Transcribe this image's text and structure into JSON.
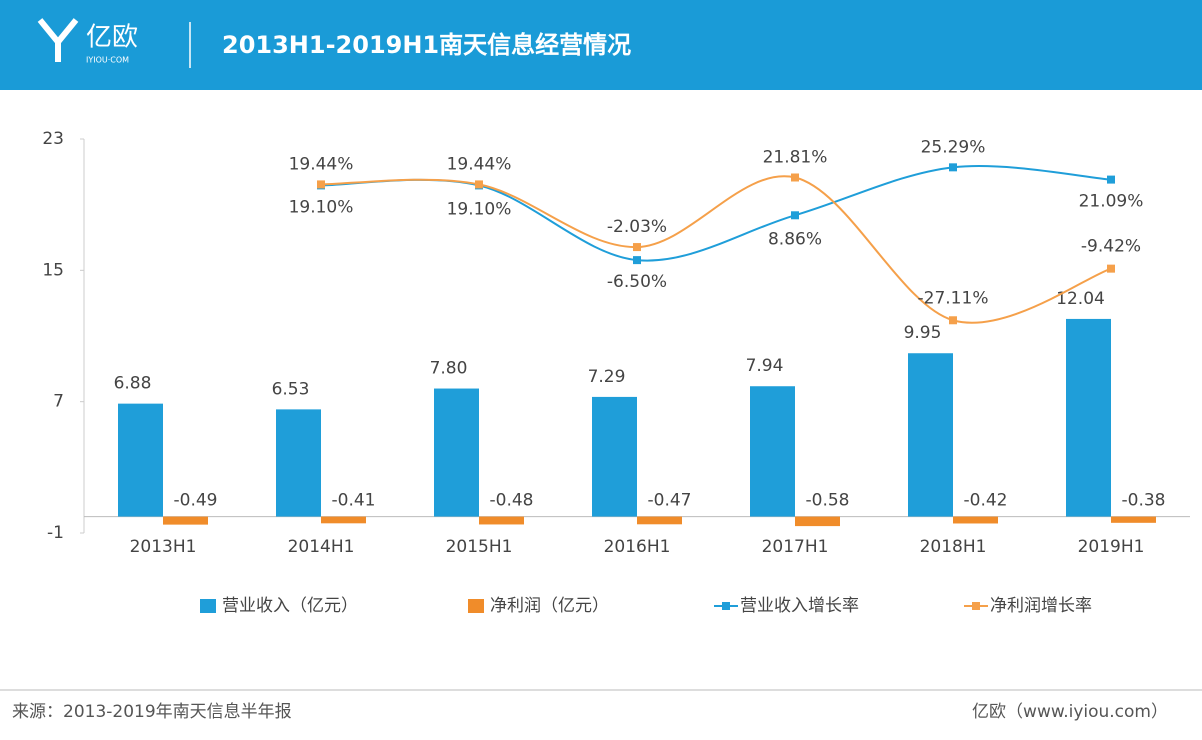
{
  "header": {
    "logo": "亿欧",
    "logo_sub": "IYIOU·COM"
  },
  "chart_data": {
    "type": "bar",
    "title": "2013H1-2019H1南天信息经营情况",
    "categories": [
      "2013H1",
      "2014H1",
      "2015H1",
      "2016H1",
      "2017H1",
      "2018H1",
      "2019H1"
    ],
    "ylim": [
      -1,
      23
    ],
    "yticks": [
      -1,
      7,
      15,
      23
    ],
    "y2lim": [
      -100,
      35
    ],
    "series": [
      {
        "name": "营业收入（亿元）",
        "type": "bar",
        "color": "#1f9ed9",
        "values": [
          6.88,
          6.53,
          7.8,
          7.29,
          7.94,
          9.95,
          12.04
        ],
        "value_labels": [
          "6.88",
          "6.53",
          "7.80",
          "7.29",
          "7.94",
          "9.95",
          "12.04"
        ]
      },
      {
        "name": "净利润（亿元）",
        "type": "bar",
        "color": "#f08c2a",
        "values": [
          -0.49,
          -0.41,
          -0.48,
          -0.47,
          -0.58,
          -0.42,
          -0.38
        ],
        "value_labels": [
          "-0.49",
          "-0.41",
          "-0.48",
          "-0.47",
          "-0.58",
          "-0.42",
          "-0.38"
        ]
      },
      {
        "name": "营业收入增长率",
        "type": "line",
        "axis": "y2",
        "color": "#1f9ed9",
        "values": [
          null,
          19.1,
          19.1,
          -6.5,
          8.86,
          25.29,
          21.09
        ],
        "value_labels": [
          null,
          "19.10%",
          "19.10%",
          "-6.50%",
          "8.86%",
          "25.29%",
          "21.09%"
        ]
      },
      {
        "name": "净利润增长率",
        "type": "line",
        "axis": "y2",
        "color": "#f5a04a",
        "values": [
          null,
          19.44,
          19.44,
          -2.03,
          21.81,
          -27.11,
          -9.42
        ],
        "value_labels": [
          null,
          "19.44%",
          "19.44%",
          "-2.03%",
          "21.81%",
          "-27.11%",
          "-9.42%"
        ]
      }
    ]
  },
  "footer": {
    "source": "来源：2013-2019年南天信息半年报",
    "site": "亿欧（www.iyiou.com）"
  }
}
